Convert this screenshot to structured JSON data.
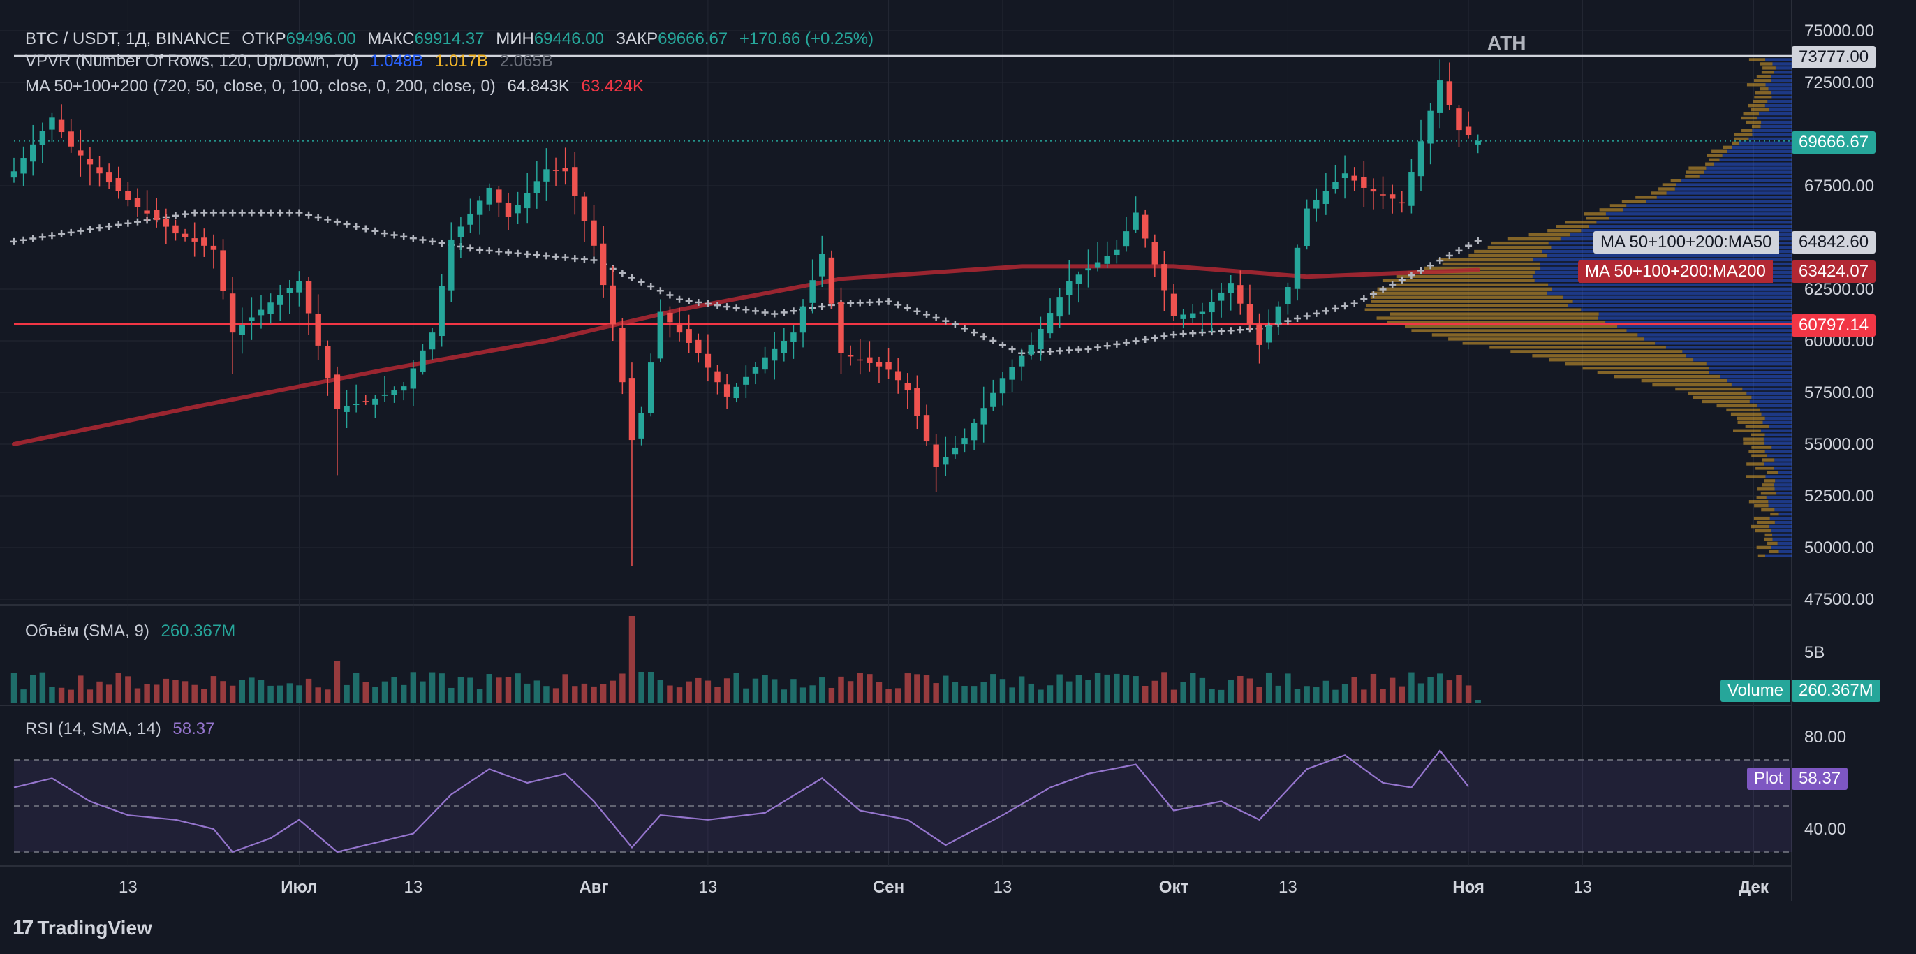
{
  "header": {
    "symbol": "BTC / USDT, 1Д, BINANCE",
    "open_label": "ОТКР",
    "open": "69496.00",
    "high_label": "МАКС",
    "high": "69914.37",
    "low_label": "МИН",
    "low": "69446.00",
    "close_label": "ЗАКР",
    "close": "69666.67",
    "change": "+170.66 (+0.25%)"
  },
  "indicators": {
    "vpvr": {
      "label": "VPVR (Number Of Rows, 120, Up/Down, 70)",
      "up": "1.048B",
      "down": "1.017B",
      "total": "2.065B"
    },
    "ma": {
      "label": "MA 50+100+200 (720, 50, close, 0, 100, close, 0, 200, close, 0)",
      "ma50": "64.843K",
      "ma200": "63.424K"
    },
    "volume": {
      "label": "Объём (SMA, 9)",
      "value": "260.367M"
    },
    "rsi": {
      "label": "RSI (14, SMA, 14)",
      "value": "58.37"
    }
  },
  "price_tags": {
    "ath_label": "ATH",
    "ath": "73777.00",
    "last": "69666.67",
    "ma50_name": "MA 50+100+200:MA50",
    "ma50": "64842.60",
    "ma200_name": "MA 50+100+200:MA200",
    "ma200": "63424.07",
    "support": "60797.14",
    "volume_name": "Volume",
    "volume": "260.367M",
    "rsi_name": "Plot",
    "rsi": "58.37"
  },
  "colors": {
    "background": "#141823",
    "up": "#26a69a",
    "down": "#ef5350",
    "ma50": "#b2b5be",
    "ma200": "#b22833",
    "support": "#f23645",
    "rsi": "#7e57c2",
    "vp_up": "#2962ff",
    "vp_down": "#e0a52e"
  },
  "footer": {
    "brand": "TradingView",
    "logo_icon": "tradingview-logo-icon"
  },
  "chart_data": [
    {
      "type": "candlestick",
      "title": "",
      "y_ticks": [
        "75000.00",
        "72500.00",
        "67500.00",
        "62500.00",
        "60000.00",
        "57500.00",
        "55000.00",
        "52500.00",
        "50000.00",
        "47500.00"
      ],
      "y_tick_values": [
        75000,
        72500,
        67500,
        62500,
        60000,
        57500,
        55000,
        52500,
        50000,
        47500
      ],
      "ylim": [
        47500,
        75000
      ],
      "x_ticks": [
        "13",
        "Июл",
        "13",
        "Авг",
        "13",
        "Сен",
        "13",
        "Окт",
        "13",
        "Ноя",
        "13",
        "Дек"
      ],
      "x_tick_dates": [
        "2024-06-13",
        "2024-07-01",
        "2024-07-13",
        "2024-08-01",
        "2024-08-13",
        "2024-09-01",
        "2024-09-13",
        "2024-10-01",
        "2024-10-13",
        "2024-11-01",
        "2024-11-13",
        "2024-12-01"
      ],
      "xlim": [
        "2024-06-01",
        "2024-12-05"
      ],
      "ath": 73777.0,
      "support_level": 60797.14,
      "anchors": [
        {
          "date": "2024-06-01",
          "close": 68200
        },
        {
          "date": "2024-06-05",
          "close": 70800
        },
        {
          "date": "2024-06-07",
          "close": 69400
        },
        {
          "date": "2024-06-13",
          "close": 66800
        },
        {
          "date": "2024-06-18",
          "close": 65200
        },
        {
          "date": "2024-06-22",
          "close": 64400
        },
        {
          "date": "2024-06-24",
          "close": 60400
        },
        {
          "date": "2024-06-27",
          "close": 61500
        },
        {
          "date": "2024-07-01",
          "close": 62900
        },
        {
          "date": "2024-07-04",
          "close": 58200
        },
        {
          "date": "2024-07-05",
          "close": 56700
        },
        {
          "date": "2024-07-09",
          "close": 57200
        },
        {
          "date": "2024-07-12",
          "close": 57800
        },
        {
          "date": "2024-07-15",
          "close": 60400
        },
        {
          "date": "2024-07-17",
          "close": 64900
        },
        {
          "date": "2024-07-21",
          "close": 67400
        },
        {
          "date": "2024-07-23",
          "close": 66000
        },
        {
          "date": "2024-07-27",
          "close": 68300
        },
        {
          "date": "2024-07-29",
          "close": 68200
        },
        {
          "date": "2024-08-01",
          "close": 64600
        },
        {
          "date": "2024-08-03",
          "close": 60800
        },
        {
          "date": "2024-08-05",
          "close": 55200
        },
        {
          "date": "2024-08-06",
          "close": 56500
        },
        {
          "date": "2024-08-08",
          "close": 61400
        },
        {
          "date": "2024-08-12",
          "close": 59400
        },
        {
          "date": "2024-08-15",
          "close": 57300
        },
        {
          "date": "2024-08-19",
          "close": 59200
        },
        {
          "date": "2024-08-22",
          "close": 60400
        },
        {
          "date": "2024-08-25",
          "close": 64200
        },
        {
          "date": "2024-08-27",
          "close": 59400
        },
        {
          "date": "2024-09-01",
          "close": 58600
        },
        {
          "date": "2024-09-03",
          "close": 57600
        },
        {
          "date": "2024-09-06",
          "close": 53900
        },
        {
          "date": "2024-09-09",
          "close": 55300
        },
        {
          "date": "2024-09-13",
          "close": 58200
        },
        {
          "date": "2024-09-16",
          "close": 59800
        },
        {
          "date": "2024-09-20",
          "close": 62900
        },
        {
          "date": "2024-09-25",
          "close": 64400
        },
        {
          "date": "2024-09-27",
          "close": 66200
        },
        {
          "date": "2024-10-01",
          "close": 61200
        },
        {
          "date": "2024-10-04",
          "close": 61400
        },
        {
          "date": "2024-10-07",
          "close": 62800
        },
        {
          "date": "2024-10-10",
          "close": 59800
        },
        {
          "date": "2024-10-13",
          "close": 62600
        },
        {
          "date": "2024-10-15",
          "close": 66400
        },
        {
          "date": "2024-10-19",
          "close": 68100
        },
        {
          "date": "2024-10-21",
          "close": 67400
        },
        {
          "date": "2024-10-25",
          "close": 66700
        },
        {
          "date": "2024-10-29",
          "close": 72600
        },
        {
          "date": "2024-10-31",
          "close": 70200
        },
        {
          "date": "2024-11-02",
          "close": 69666.67
        }
      ],
      "ma50": [
        {
          "date": "2024-06-01",
          "value": 64800
        },
        {
          "date": "2024-06-20",
          "value": 66200
        },
        {
          "date": "2024-07-01",
          "value": 66200
        },
        {
          "date": "2024-07-10",
          "value": 65200
        },
        {
          "date": "2024-07-20",
          "value": 64400
        },
        {
          "date": "2024-08-01",
          "value": 63900
        },
        {
          "date": "2024-08-10",
          "value": 62000
        },
        {
          "date": "2024-08-20",
          "value": 61300
        },
        {
          "date": "2024-08-27",
          "value": 61800
        },
        {
          "date": "2024-09-01",
          "value": 61900
        },
        {
          "date": "2024-09-08",
          "value": 60800
        },
        {
          "date": "2024-09-15",
          "value": 59400
        },
        {
          "date": "2024-09-22",
          "value": 59600
        },
        {
          "date": "2024-10-01",
          "value": 60300
        },
        {
          "date": "2024-10-10",
          "value": 60600
        },
        {
          "date": "2024-10-20",
          "value": 61800
        },
        {
          "date": "2024-10-27",
          "value": 63400
        },
        {
          "date": "2024-11-02",
          "value": 64842.6
        }
      ],
      "ma200": [
        {
          "date": "2024-06-01",
          "value": 55000
        },
        {
          "date": "2024-06-20",
          "value": 56800
        },
        {
          "date": "2024-07-10",
          "value": 58600
        },
        {
          "date": "2024-07-27",
          "value": 60000
        },
        {
          "date": "2024-08-10",
          "value": 61500
        },
        {
          "date": "2024-08-27",
          "value": 63000
        },
        {
          "date": "2024-09-15",
          "value": 63600
        },
        {
          "date": "2024-10-01",
          "value": 63600
        },
        {
          "date": "2024-10-15",
          "value": 63100
        },
        {
          "date": "2024-11-02",
          "value": 63424.07
        }
      ],
      "volume_profile": {
        "peak_up_price": 63500,
        "peak_down_price": 61000,
        "price_range": [
          49500,
          73700
        ]
      }
    },
    {
      "type": "bar",
      "title": "",
      "name": "Объём (SMA, 9)",
      "y_ticks": [
        "5B"
      ],
      "y_tick_values": [
        5
      ],
      "last": "260.367M",
      "peak_date": "2024-08-05"
    },
    {
      "type": "line",
      "title": "",
      "name": "RSI (14, SMA, 14)",
      "y_ticks": [
        "80.00",
        "40.00"
      ],
      "y_tick_values": [
        80,
        40
      ],
      "ylim": [
        30,
        90
      ],
      "bands": [
        70,
        50,
        30
      ],
      "points": [
        {
          "date": "2024-06-01",
          "value": 58
        },
        {
          "date": "2024-06-05",
          "value": 62
        },
        {
          "date": "2024-06-09",
          "value": 52
        },
        {
          "date": "2024-06-13",
          "value": 46
        },
        {
          "date": "2024-06-18",
          "value": 44
        },
        {
          "date": "2024-06-22",
          "value": 40
        },
        {
          "date": "2024-06-24",
          "value": 30
        },
        {
          "date": "2024-06-28",
          "value": 36
        },
        {
          "date": "2024-07-01",
          "value": 44
        },
        {
          "date": "2024-07-05",
          "value": 30
        },
        {
          "date": "2024-07-09",
          "value": 34
        },
        {
          "date": "2024-07-13",
          "value": 38
        },
        {
          "date": "2024-07-17",
          "value": 55
        },
        {
          "date": "2024-07-21",
          "value": 66
        },
        {
          "date": "2024-07-25",
          "value": 60
        },
        {
          "date": "2024-07-29",
          "value": 64
        },
        {
          "date": "2024-08-01",
          "value": 52
        },
        {
          "date": "2024-08-05",
          "value": 32
        },
        {
          "date": "2024-08-08",
          "value": 46
        },
        {
          "date": "2024-08-13",
          "value": 44
        },
        {
          "date": "2024-08-19",
          "value": 47
        },
        {
          "date": "2024-08-25",
          "value": 62
        },
        {
          "date": "2024-08-29",
          "value": 48
        },
        {
          "date": "2024-09-03",
          "value": 44
        },
        {
          "date": "2024-09-07",
          "value": 33
        },
        {
          "date": "2024-09-13",
          "value": 46
        },
        {
          "date": "2024-09-18",
          "value": 58
        },
        {
          "date": "2024-09-22",
          "value": 64
        },
        {
          "date": "2024-09-27",
          "value": 68
        },
        {
          "date": "2024-10-01",
          "value": 48
        },
        {
          "date": "2024-10-06",
          "value": 52
        },
        {
          "date": "2024-10-10",
          "value": 44
        },
        {
          "date": "2024-10-15",
          "value": 66
        },
        {
          "date": "2024-10-19",
          "value": 72
        },
        {
          "date": "2024-10-23",
          "value": 60
        },
        {
          "date": "2024-10-26",
          "value": 58
        },
        {
          "date": "2024-10-29",
          "value": 74
        },
        {
          "date": "2024-11-01",
          "value": 58.37
        }
      ]
    }
  ]
}
